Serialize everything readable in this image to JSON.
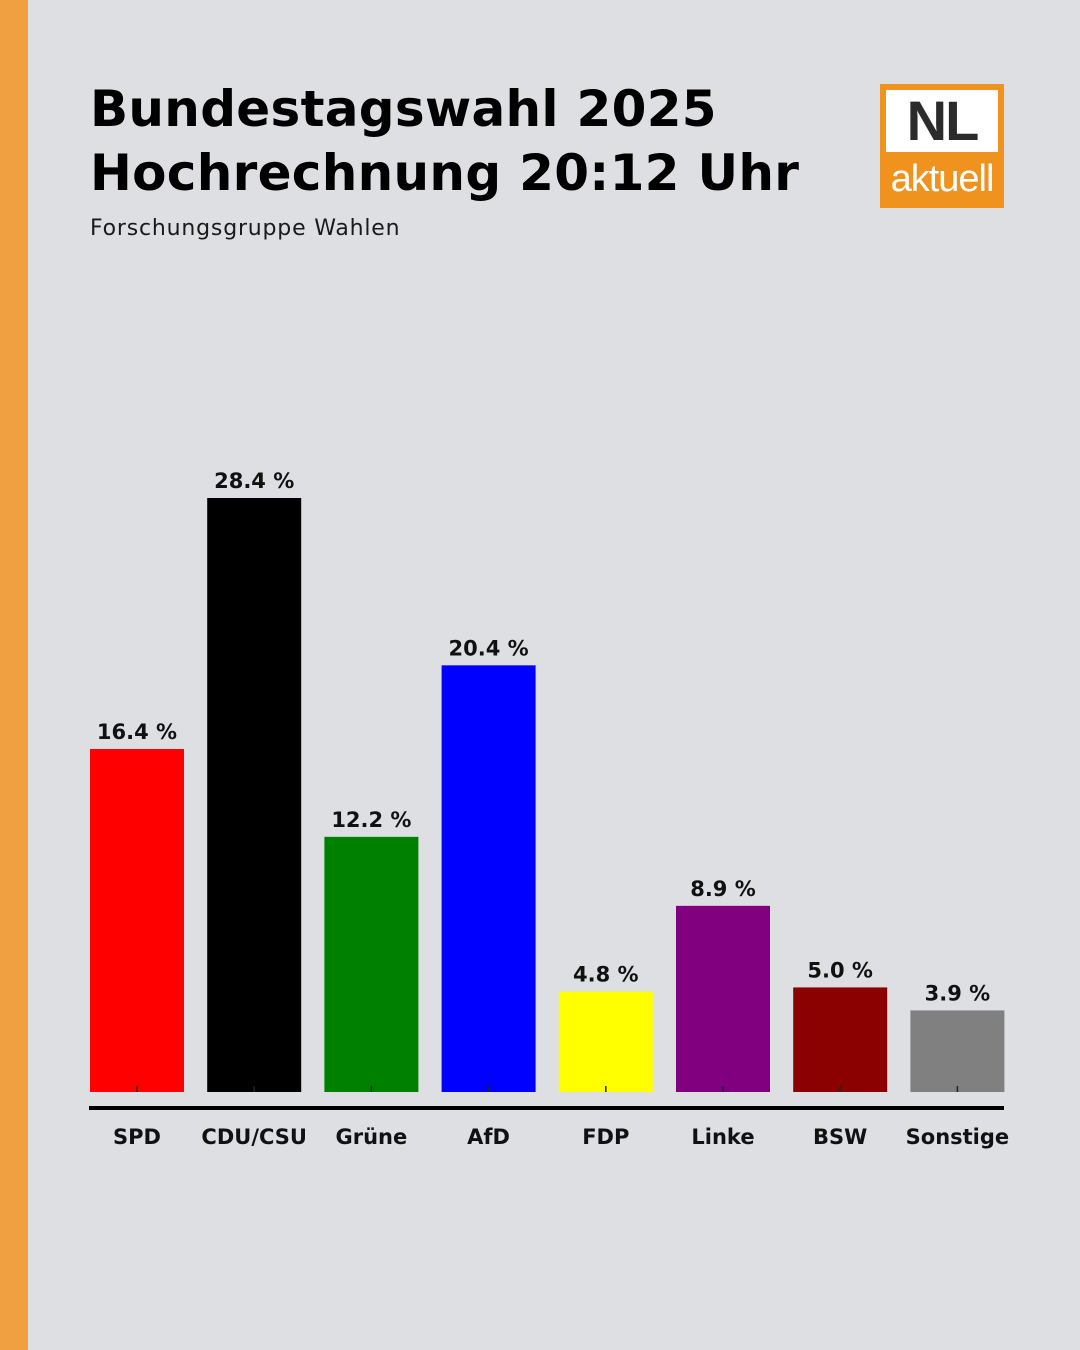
{
  "header": {
    "title_line1": "Bundestagswahl 2025",
    "title_line2": "Hochrechnung 20:12 Uhr",
    "source": "Forschungsgruppe Wahlen"
  },
  "logo": {
    "top_text": "NL",
    "bottom_text": "aktuell",
    "color": "#f0921e"
  },
  "accent_color": "#f0a040",
  "chart_data": {
    "type": "bar",
    "title": "",
    "xlabel": "",
    "ylabel": "",
    "ylim": [
      0,
      30
    ],
    "grid": false,
    "categories": [
      "SPD",
      "CDU/CSU",
      "Grüne",
      "AfD",
      "FDP",
      "Linke",
      "BSW",
      "Sonstige"
    ],
    "values": [
      16.4,
      28.4,
      12.2,
      20.4,
      4.8,
      8.9,
      5.0,
      3.9
    ],
    "value_labels": [
      "16.4 %",
      "28.4 %",
      "12.2 %",
      "20.4 %",
      "4.8 %",
      "8.9 %",
      "5.0 %",
      "3.9 %"
    ],
    "colors": [
      "#ff0000",
      "#000000",
      "#008000",
      "#0000ff",
      "#ffff00",
      "#800080",
      "#8b0000",
      "#808080"
    ]
  }
}
